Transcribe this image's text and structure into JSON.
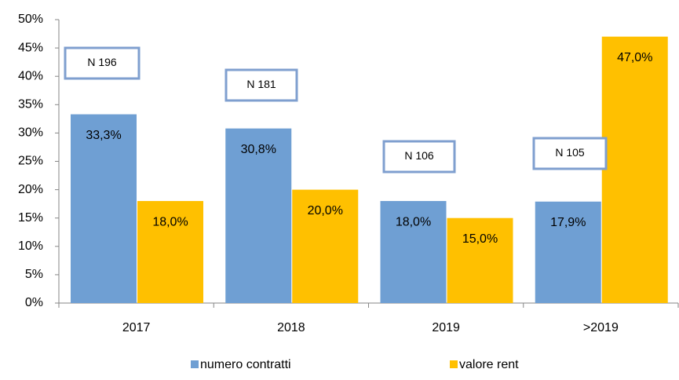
{
  "chart_data": {
    "type": "bar",
    "categories": [
      "2017",
      "2018",
      "2019",
      ">2019"
    ],
    "series": [
      {
        "name": "numero contratti",
        "color": "#6f9fd3",
        "values": [
          33.3,
          30.8,
          18.0,
          17.9
        ],
        "value_labels": [
          "33,3%",
          "30,8%",
          "18,0%",
          "17,9%"
        ]
      },
      {
        "name": "valore rent",
        "color": "#ffc000",
        "values": [
          18.0,
          20.0,
          15.0,
          47.0
        ],
        "value_labels": [
          "18,0%",
          "20,0%",
          "15,0%",
          "47,0%"
        ]
      }
    ],
    "annotations": [
      "N 196",
      "N 181",
      "N 106",
      "N 105"
    ],
    "ylim": [
      0,
      50
    ],
    "yticks": [
      {
        "value": 0,
        "label": "0%"
      },
      {
        "value": 5,
        "label": "5%"
      },
      {
        "value": 10,
        "label": "10%"
      },
      {
        "value": 15,
        "label": "15%"
      },
      {
        "value": 20,
        "label": "20%"
      },
      {
        "value": 25,
        "label": "25%"
      },
      {
        "value": 30,
        "label": "30%"
      },
      {
        "value": 35,
        "label": "35%"
      },
      {
        "value": 40,
        "label": "40%"
      },
      {
        "value": 45,
        "label": "45%"
      },
      {
        "value": 50,
        "label": "50%"
      }
    ],
    "legend": "bottom"
  }
}
